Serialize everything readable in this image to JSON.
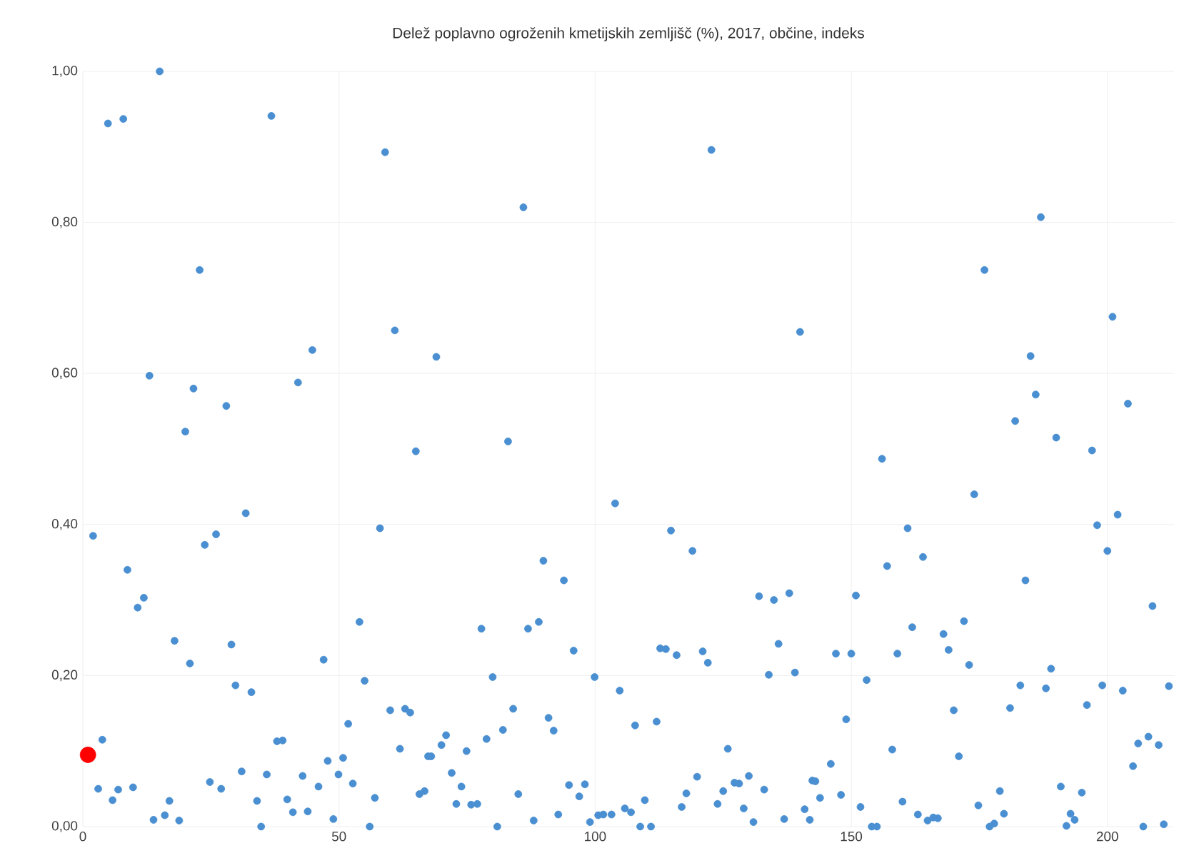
{
  "chart_data": {
    "type": "scatter",
    "title": "Delež poplavno ogroženih kmetijskih zemljišč (%), 2017, občine, indeks",
    "xlim": [
      0,
      213
    ],
    "ylim": [
      0,
      1
    ],
    "xticks": [
      0,
      50,
      100,
      150,
      200
    ],
    "yticks": [
      {
        "value": 0,
        "label": "0,00"
      },
      {
        "value": 0.2,
        "label": "0,20"
      },
      {
        "value": 0.4,
        "label": "0,40"
      },
      {
        "value": 0.6,
        "label": "0,60"
      },
      {
        "value": 0.8,
        "label": "0,80"
      },
      {
        "value": 1,
        "label": "1,00"
      }
    ],
    "grid": true,
    "legend": false,
    "series": [
      {
        "color": "#4a8fd1",
        "x": [
          4.9,
          7.9,
          15,
          36.8,
          59,
          22.8,
          60.9,
          44.8,
          13,
          21.6,
          42,
          28,
          20,
          122.7,
          86,
          140,
          69,
          83,
          187,
          176,
          201,
          185,
          186,
          204,
          182,
          190,
          65,
          2,
          31.8,
          58,
          23.8,
          26,
          8.7,
          10.7,
          11.9,
          54,
          17.9,
          29,
          20.9,
          47,
          55,
          29.8,
          32.9,
          60,
          62.9,
          63.9,
          51.8,
          3.8,
          37.9,
          39,
          61.9,
          67.4,
          47.8,
          50.8,
          31,
          35.9,
          42.9,
          49.9,
          24.8,
          27,
          52.7,
          46,
          3,
          6.9,
          9.8,
          5.8,
          16.9,
          34,
          39.9,
          57,
          65.7,
          66.7,
          41,
          43.9,
          13.8,
          16,
          18.8,
          48.9,
          34.8,
          56,
          103.9,
          114.8,
          119,
          89.9,
          93.9,
          132,
          134.9,
          137.9,
          77.8,
          86.9,
          89,
          95.8,
          135.8,
          112.7,
          113.8,
          115.9,
          121,
          122,
          80,
          99.9,
          133.9,
          139,
          104.8,
          84,
          90.9,
          91.9,
          82,
          78.8,
          107.8,
          112,
          70.9,
          70,
          125.9,
          68,
          74.9,
          72,
          73.9,
          119.9,
          130,
          127.2,
          128.1,
          94.9,
          98,
          85,
          96.9,
          117.8,
          125,
          133,
          142.4,
          72.9,
          75.8,
          77,
          109.7,
          116.9,
          123.9,
          129,
          140.9,
          92.8,
          88,
          99,
          100.6,
          101.6,
          103.2,
          105.8,
          107,
          108.8,
          110.9,
          80.9,
          130.9,
          136.9,
          141.9,
          197,
          156,
          174,
          202,
          198,
          161,
          200,
          164,
          157,
          184,
          150.9,
          208.8,
          161.9,
          172,
          168,
          169,
          147,
          150,
          159,
          173,
          153,
          189,
          183,
          188,
          199,
          203,
          212,
          196,
          181,
          170,
          149,
          208,
          206,
          210,
          158,
          171,
          205,
          146,
          143,
          143.9,
          148,
          190.9,
          195,
          179,
          160,
          174.8,
          151.8,
          163,
          164.9,
          166,
          166.9,
          179.8,
          177,
          177.9,
          192.8,
          193.6,
          192,
          154,
          155,
          207,
          211
        ],
        "values": [
          0.931,
          0.937,
          1.0,
          0.941,
          0.893,
          0.737,
          0.657,
          0.631,
          0.597,
          0.58,
          0.588,
          0.557,
          0.523,
          0.896,
          0.82,
          0.655,
          0.622,
          0.51,
          0.807,
          0.737,
          0.675,
          0.623,
          0.572,
          0.56,
          0.537,
          0.515,
          0.497,
          0.385,
          0.415,
          0.395,
          0.373,
          0.387,
          0.34,
          0.29,
          0.303,
          0.271,
          0.246,
          0.241,
          0.216,
          0.221,
          0.193,
          0.187,
          0.178,
          0.154,
          0.156,
          0.151,
          0.136,
          0.115,
          0.113,
          0.114,
          0.103,
          0.093,
          0.087,
          0.091,
          0.073,
          0.069,
          0.067,
          0.069,
          0.059,
          0.05,
          0.057,
          0.053,
          0.05,
          0.049,
          0.052,
          0.035,
          0.034,
          0.034,
          0.036,
          0.038,
          0.043,
          0.047,
          0.019,
          0.02,
          0.009,
          0.015,
          0.008,
          0.01,
          0,
          0,
          0.428,
          0.392,
          0.365,
          0.352,
          0.326,
          0.305,
          0.3,
          0.309,
          0.262,
          0.262,
          0.271,
          0.233,
          0.242,
          0.236,
          0.235,
          0.227,
          0.232,
          0.217,
          0.198,
          0.198,
          0.201,
          0.204,
          0.18,
          0.156,
          0.144,
          0.127,
          0.128,
          0.116,
          0.134,
          0.139,
          0.121,
          0.108,
          0.103,
          0.093,
          0.1,
          0.071,
          0.053,
          0.066,
          0.067,
          0.058,
          0.057,
          0.055,
          0.056,
          0.043,
          0.04,
          0.044,
          0.047,
          0.049,
          0.061,
          0.03,
          0.029,
          0.03,
          0.035,
          0.026,
          0.03,
          0.024,
          0.023,
          0.016,
          0.008,
          0.006,
          0.015,
          0.016,
          0.016,
          0.024,
          0.019,
          0,
          0,
          0,
          0.006,
          0.01,
          0.009,
          0.498,
          0.487,
          0.44,
          0.413,
          0.399,
          0.395,
          0.365,
          0.357,
          0.345,
          0.326,
          0.306,
          0.292,
          0.264,
          0.272,
          0.255,
          0.234,
          0.229,
          0.229,
          0.229,
          0.214,
          0.194,
          0.209,
          0.187,
          0.183,
          0.187,
          0.18,
          0.186,
          0.161,
          0.157,
          0.154,
          0.142,
          0.119,
          0.11,
          0.108,
          0.102,
          0.093,
          0.08,
          0.083,
          0.06,
          0.038,
          0.042,
          0.053,
          0.045,
          0.047,
          0.033,
          0.028,
          0.026,
          0.016,
          0.008,
          0.012,
          0.011,
          0.017,
          0,
          0.004,
          0.017,
          0.009,
          0.001,
          0,
          0,
          0,
          0.003
        ]
      },
      {
        "color": "#ff0000",
        "x": [
          1
        ],
        "values": [
          0.095
        ]
      }
    ]
  }
}
